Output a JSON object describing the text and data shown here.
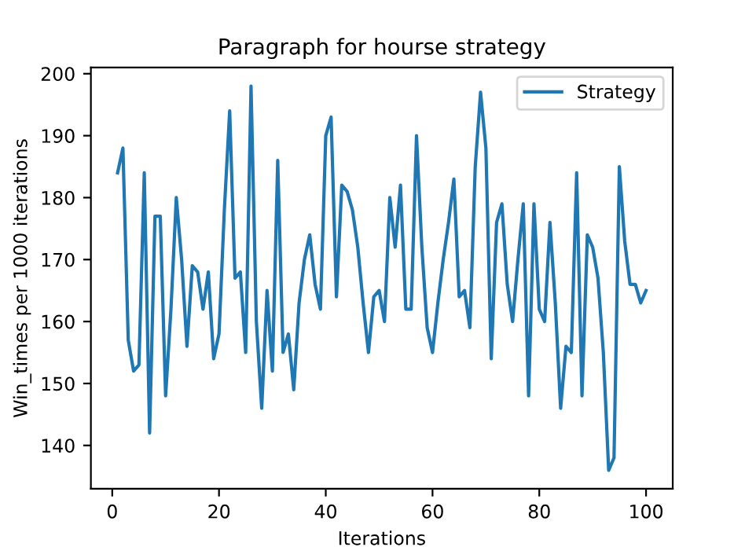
{
  "chart_data": {
    "type": "line",
    "title": "Paragraph for hourse strategy",
    "xlabel": "Iterations",
    "ylabel": "Win_times per 1000 iterations",
    "x": [
      1,
      2,
      3,
      4,
      5,
      6,
      7,
      8,
      9,
      10,
      11,
      12,
      13,
      14,
      15,
      16,
      17,
      18,
      19,
      20,
      21,
      22,
      23,
      24,
      25,
      26,
      27,
      28,
      29,
      30,
      31,
      32,
      33,
      34,
      35,
      36,
      37,
      38,
      39,
      40,
      41,
      42,
      43,
      44,
      45,
      46,
      47,
      48,
      49,
      50,
      51,
      52,
      53,
      54,
      55,
      56,
      57,
      58,
      59,
      60,
      61,
      62,
      63,
      64,
      65,
      66,
      67,
      68,
      69,
      70,
      71,
      72,
      73,
      74,
      75,
      76,
      77,
      78,
      79,
      80,
      81,
      82,
      83,
      84,
      85,
      86,
      87,
      88,
      89,
      90,
      91,
      92,
      93,
      94,
      95,
      96,
      97,
      98,
      99,
      100
    ],
    "series": [
      {
        "name": "Strategy",
        "color": "#1f77b4",
        "values": [
          184,
          188,
          157,
          152,
          153,
          184,
          142,
          177,
          177,
          148,
          162,
          180,
          170,
          156,
          169,
          168,
          162,
          168,
          154,
          158,
          178,
          194,
          167,
          168,
          155,
          198,
          160,
          146,
          165,
          152,
          186,
          155,
          158,
          149,
          163,
          170,
          174,
          166,
          162,
          190,
          193,
          164,
          182,
          181,
          178,
          172,
          163,
          155,
          164,
          165,
          160,
          180,
          172,
          182,
          162,
          162,
          190,
          172,
          159,
          155,
          163,
          170,
          176,
          183,
          164,
          165,
          159,
          185,
          197,
          188,
          154,
          176,
          179,
          166,
          160,
          170,
          179,
          148,
          179,
          162,
          160,
          176,
          163,
          146,
          156,
          155,
          184,
          148,
          174,
          172,
          167,
          155,
          136,
          138,
          185,
          173,
          166,
          166,
          163,
          165
        ]
      }
    ],
    "xlim": [
      -4,
      105
    ],
    "ylim": [
      133,
      201
    ],
    "xticks": [
      0,
      20,
      40,
      60,
      80,
      100
    ],
    "yticks": [
      140,
      150,
      160,
      170,
      180,
      190,
      200
    ],
    "legend": "top right",
    "grid": false,
    "line_style": "solid",
    "marker": "none"
  }
}
